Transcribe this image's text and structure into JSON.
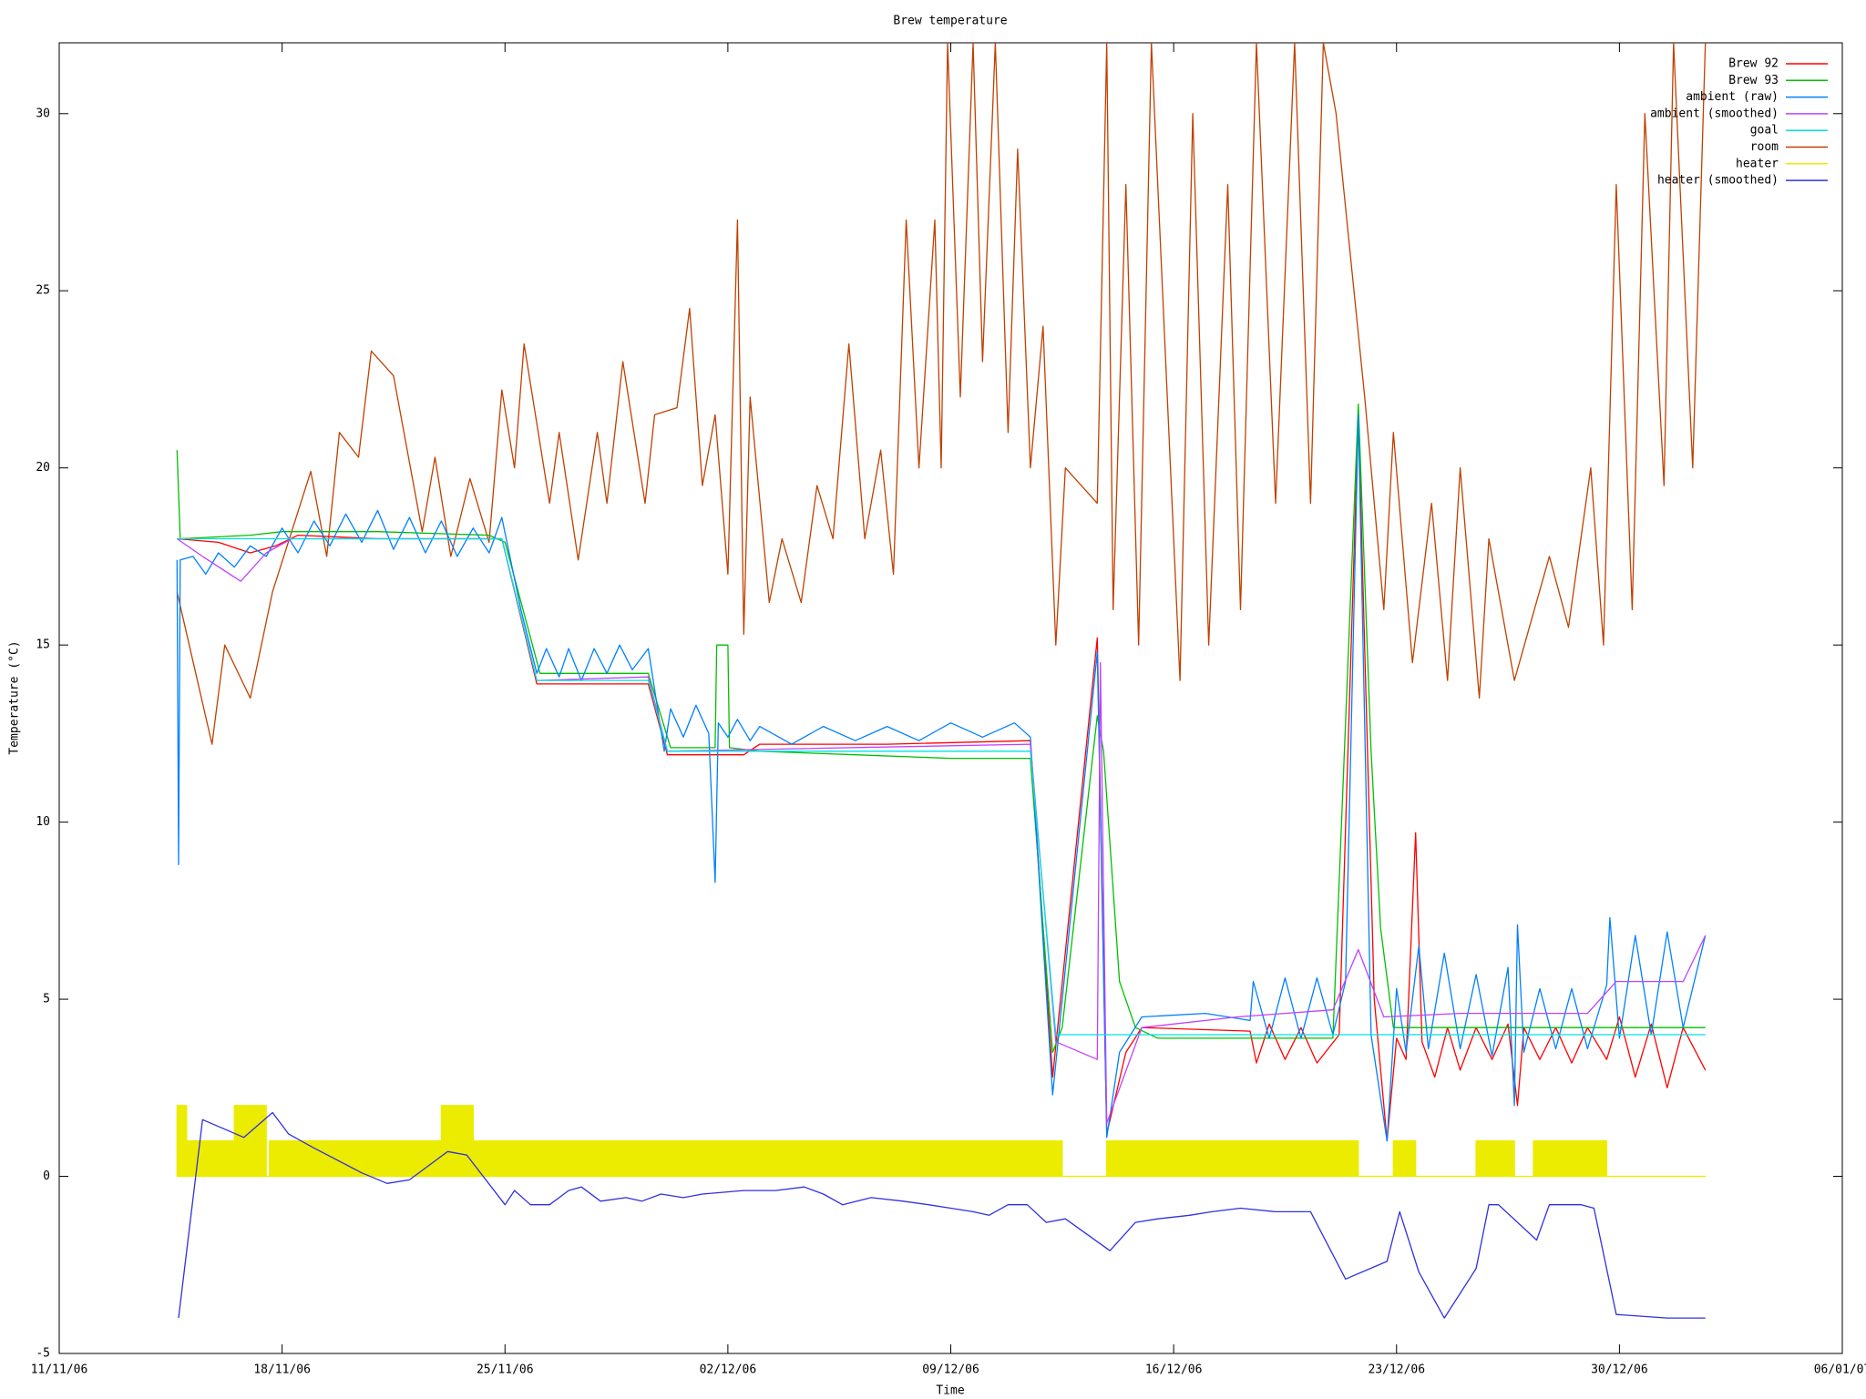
{
  "chart_data": {
    "type": "line",
    "title": "Brew temperature",
    "x_label": "Time",
    "y_label": "Temperature (°C)",
    "xlim": [
      0,
      56
    ],
    "ylim": [
      -5,
      32
    ],
    "xticks": [
      {
        "value": 0,
        "label": "11/11/06"
      },
      {
        "value": 7,
        "label": "18/11/06"
      },
      {
        "value": 14,
        "label": "25/11/06"
      },
      {
        "value": 21,
        "label": "02/12/06"
      },
      {
        "value": 28,
        "label": "09/12/06"
      },
      {
        "value": 35,
        "label": "16/12/06"
      },
      {
        "value": 42,
        "label": "23/12/06"
      },
      {
        "value": 49,
        "label": "30/12/06"
      },
      {
        "value": 56,
        "label": "06/01/07"
      }
    ],
    "yticks": [
      -5,
      0,
      5,
      10,
      15,
      20,
      25,
      30
    ],
    "grid": false,
    "legend": "top-right",
    "series": [
      {
        "name": "Brew 92",
        "color": "#ff0000",
        "x": [
          3.7,
          5,
          6,
          6.8,
          7.5,
          10,
          13.9,
          15,
          18.5,
          19.1,
          21.5,
          22,
          26,
          30.5,
          31.2,
          32.6,
          32.9,
          33.5,
          34,
          37.4,
          37.6,
          38,
          38.5,
          39,
          39.5,
          40.2,
          40.8,
          41.3,
          41.7,
          42,
          42.3,
          42.6,
          42.8,
          43.2,
          43.6,
          44,
          44.5,
          45,
          45.5,
          45.8,
          46,
          46.5,
          47,
          47.5,
          48,
          48.6,
          49,
          49.5,
          50,
          50.5,
          51,
          51.7
        ],
        "values": [
          18,
          17.9,
          17.6,
          17.8,
          18.1,
          18,
          18,
          13.9,
          13.9,
          11.9,
          11.9,
          12.2,
          12.2,
          12.3,
          2.8,
          15.2,
          1.2,
          3.5,
          4.2,
          4.1,
          3.2,
          4.3,
          3.3,
          4.2,
          3.2,
          4,
          21.5,
          5,
          1,
          3.9,
          3.3,
          9.7,
          3.8,
          2.8,
          4.2,
          3,
          4.2,
          3.3,
          4.3,
          2,
          4.2,
          3.3,
          4.2,
          3.2,
          4.2,
          3.3,
          4.5,
          2.8,
          4.3,
          2.5,
          4.2,
          3
        ]
      },
      {
        "name": "Brew 93",
        "color": "#00c000",
        "x": [
          3.7,
          3.8,
          6,
          7,
          10,
          13.5,
          14,
          15.1,
          18.5,
          19.2,
          20.6,
          20.65,
          21,
          21.05,
          22,
          25,
          28,
          30.5,
          31.2,
          31.5,
          32.6,
          32.8,
          33.3,
          33.8,
          34.5,
          40,
          40.8,
          41.2,
          41.5,
          41.9,
          51.7
        ],
        "values": [
          20.5,
          18,
          18.1,
          18.2,
          18.2,
          18.1,
          17.9,
          14.2,
          14.2,
          12.1,
          12.1,
          15,
          15,
          12.1,
          12,
          11.9,
          11.8,
          11.8,
          3.5,
          4.2,
          13,
          12,
          5.5,
          4.2,
          3.9,
          3.9,
          21.8,
          12,
          7,
          4.2,
          4.2
        ]
      },
      {
        "name": "ambient (raw)",
        "color": "#0080ff",
        "x": [
          3.7,
          3.75,
          3.8,
          4.2,
          4.6,
          5,
          5.5,
          6,
          6.5,
          7,
          7.5,
          8,
          8.5,
          9,
          9.5,
          10,
          10.5,
          11,
          11.5,
          12,
          12.5,
          13,
          13.5,
          13.9,
          14.5,
          15,
          15.3,
          15.7,
          16,
          16.4,
          16.8,
          17.2,
          17.6,
          18,
          18.5,
          19,
          19.2,
          19.6,
          20,
          20.4,
          20.6,
          20.7,
          21,
          21.3,
          21.7,
          22,
          23,
          24,
          25,
          26,
          27,
          28,
          29,
          30,
          30.5,
          31.2,
          32.6,
          32.9,
          33.3,
          34,
          36,
          37.4,
          37.5,
          38,
          38.5,
          39,
          39.5,
          40,
          40.4,
          40.8,
          41.2,
          41.7,
          42,
          42.3,
          42.7,
          43,
          43.5,
          44,
          44.5,
          45,
          45.5,
          45.7,
          45.8,
          46,
          46.5,
          47,
          47.5,
          48,
          48.6,
          48.7,
          49,
          49.5,
          50,
          50.5,
          51,
          51.7
        ],
        "values": [
          17.4,
          8.8,
          17.4,
          17.5,
          17,
          17.6,
          17.2,
          17.8,
          17.5,
          18.3,
          17.6,
          18.5,
          17.8,
          18.7,
          17.9,
          18.8,
          17.7,
          18.6,
          17.6,
          18.5,
          17.5,
          18.3,
          17.6,
          18.6,
          16,
          14.2,
          14.9,
          14.1,
          14.9,
          14,
          14.9,
          14.2,
          15,
          14.3,
          14.9,
          12,
          13.2,
          12.4,
          13.3,
          12.5,
          8.3,
          12.8,
          12.4,
          12.9,
          12.3,
          12.7,
          12.2,
          12.7,
          12.3,
          12.7,
          12.3,
          12.8,
          12.4,
          12.8,
          12.4,
          2.3,
          14.8,
          1.1,
          3.5,
          4.5,
          4.6,
          4.4,
          5.5,
          3.9,
          5.6,
          3.9,
          5.6,
          4,
          5.5,
          21.5,
          4,
          1,
          5.3,
          3.5,
          6.5,
          3.6,
          6.3,
          3.6,
          5.7,
          3.4,
          5.9,
          2,
          7.1,
          3.5,
          5.3,
          3.6,
          5.3,
          3.6,
          5.4,
          7.3,
          3.9,
          6.8,
          4,
          6.9,
          4.2,
          6.8
        ]
      },
      {
        "name": "ambient (smoothed)",
        "color": "#c040ff",
        "x": [
          3.7,
          4.5,
          5.7,
          6.5,
          7.3,
          13.9,
          15,
          18.5,
          19.1,
          30.5,
          31.3,
          32.6,
          32.7,
          32.9,
          34,
          37,
          40,
          40.8,
          41.6,
          44,
          48,
          48.9,
          51,
          51.7
        ],
        "values": [
          18,
          17.5,
          16.8,
          17.6,
          18,
          18,
          14,
          14.1,
          12,
          12.2,
          3.8,
          3.3,
          14.5,
          1.5,
          4.2,
          4.5,
          4.7,
          6.4,
          4.5,
          4.6,
          4.6,
          5.5,
          5.5,
          6.8
        ]
      },
      {
        "name": "goal",
        "color": "#00e0e0",
        "x": [
          3.7,
          13.9,
          15,
          18.5,
          19.1,
          30.5,
          31.3,
          51.7
        ],
        "values": [
          18,
          18,
          14,
          14,
          12,
          12,
          4,
          4
        ]
      },
      {
        "name": "room",
        "color": "#c04000",
        "x": [
          3.7,
          4.8,
          5.2,
          6,
          6.7,
          7.9,
          8.4,
          8.8,
          9.4,
          9.8,
          10.5,
          11.4,
          11.8,
          12.3,
          12.9,
          13.5,
          13.9,
          14.3,
          14.6,
          15.4,
          15.7,
          16.3,
          16.9,
          17.2,
          17.7,
          18.4,
          18.7,
          19.4,
          19.8,
          20.2,
          20.6,
          21,
          21.3,
          21.5,
          21.7,
          22.3,
          22.7,
          23.3,
          23.8,
          24.3,
          24.8,
          25.3,
          25.8,
          26.2,
          26.6,
          27,
          27.5,
          27.7,
          27.9,
          28.3,
          28.7,
          29,
          29.4,
          29.8,
          30.1,
          30.5,
          30.9,
          31.3,
          31.6,
          32.6,
          32.9,
          33.1,
          33.5,
          33.9,
          34.3,
          35.2,
          35.6,
          36.1,
          36.7,
          37.1,
          37.6,
          38.2,
          38.8,
          39.3,
          39.7,
          40.1,
          41,
          41.6,
          41.9,
          42.5,
          43.1,
          43.6,
          44,
          44.6,
          44.9,
          45.7,
          46.8,
          47.4,
          48.1,
          48.5,
          48.9,
          49.4,
          49.8,
          50.4,
          50.7,
          51.3,
          51.7
        ],
        "values": [
          16.5,
          12.2,
          15,
          13.5,
          16.5,
          19.9,
          17.5,
          21,
          20.3,
          23.3,
          22.6,
          18.2,
          20.3,
          17.5,
          19.7,
          17.9,
          22.2,
          20,
          23.5,
          19,
          21,
          17.4,
          21,
          19,
          23,
          19,
          21.5,
          21.7,
          24.5,
          19.5,
          21.5,
          17,
          27,
          15.3,
          22,
          16.2,
          18,
          16.2,
          19.5,
          18,
          23.5,
          18,
          20.5,
          17,
          27,
          20,
          27,
          20,
          32,
          22,
          32,
          23,
          32,
          21,
          29,
          20,
          24,
          15,
          20,
          19,
          32,
          16,
          28,
          15,
          32,
          14,
          30,
          15,
          28,
          16,
          32,
          19,
          32,
          19,
          32,
          30,
          22,
          16,
          21,
          14.5,
          19,
          14,
          20,
          13.5,
          18,
          14,
          17.5,
          15.5,
          20,
          15,
          28,
          16,
          30,
          19.5,
          32,
          20,
          32
        ]
      },
      {
        "name": "heater",
        "color": "#ecec00",
        "fill": true,
        "x": [
          3.7,
          3.7,
          4,
          4,
          5.5,
          5.5,
          6.5,
          6.5,
          6.6,
          6.6,
          12,
          12,
          13,
          13,
          14,
          14,
          31.5,
          31.5,
          32.9,
          32.9,
          40,
          40.8,
          40.8,
          41.9,
          41.9,
          42.6,
          42.6,
          44.5,
          44.5,
          45.7,
          45.7,
          46.3,
          46.3,
          48.6,
          48.6,
          51.7
        ],
        "values": [
          0,
          2,
          2,
          1,
          1,
          2,
          2,
          0,
          0,
          1,
          1,
          2,
          2,
          1,
          1,
          1,
          1,
          0,
          0,
          1,
          1,
          1,
          0,
          0,
          1,
          1,
          0,
          0,
          1,
          1,
          0,
          0,
          1,
          1,
          0,
          0
        ]
      },
      {
        "name": "heater (smoothed)",
        "color": "#3030e0",
        "x": [
          3.75,
          4.5,
          5.8,
          6.7,
          7.2,
          8,
          9.5,
          10.3,
          11,
          12.2,
          12.8,
          14,
          14.3,
          14.8,
          15.4,
          16,
          16.4,
          17,
          17.8,
          18.3,
          18.9,
          19.6,
          20.2,
          21.5,
          22.5,
          23.4,
          24,
          24.6,
          25.5,
          26.5,
          27.3,
          28,
          28.7,
          29.2,
          29.8,
          30.4,
          31,
          31.6,
          33,
          33.8,
          34.5,
          35.5,
          36.2,
          37.1,
          38.2,
          39.3,
          40.4,
          41.7,
          42.1,
          42.7,
          43.5,
          44.5,
          44.9,
          45.2,
          46.4,
          46.8,
          47.8,
          48.2,
          48.9,
          50.5,
          51.7
        ],
        "values": [
          -4,
          1.6,
          1.1,
          1.8,
          1.2,
          0.8,
          0.1,
          -0.2,
          -0.1,
          0.7,
          0.6,
          -0.8,
          -0.4,
          -0.8,
          -0.8,
          -0.4,
          -0.3,
          -0.7,
          -0.6,
          -0.7,
          -0.5,
          -0.6,
          -0.5,
          -0.4,
          -0.4,
          -0.3,
          -0.5,
          -0.8,
          -0.6,
          -0.7,
          -0.8,
          -0.9,
          -1,
          -1.1,
          -0.8,
          -0.8,
          -1.3,
          -1.2,
          -2.1,
          -1.3,
          -1.2,
          -1.1,
          -1,
          -0.9,
          -1,
          -1,
          -2.9,
          -2.4,
          -1,
          -2.7,
          -4,
          -2.6,
          -0.8,
          -0.8,
          -1.8,
          -0.8,
          -0.8,
          -0.9,
          -3.9,
          -4,
          -4
        ]
      }
    ]
  }
}
